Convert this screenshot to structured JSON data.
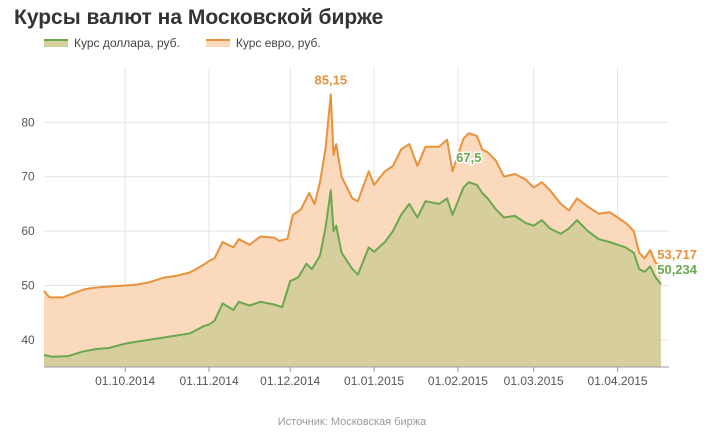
{
  "chart_data": {
    "type": "area",
    "title": "Курсы валют на Московской бирже",
    "source": "Источник: Московская биржа",
    "ylim": [
      35,
      90
    ],
    "yticks": [
      40,
      50,
      60,
      70,
      80
    ],
    "xlim": [
      "2014-09-01",
      "2015-04-20"
    ],
    "xticks": [
      {
        "date": "2014-10-01",
        "label": "01.10.2014"
      },
      {
        "date": "2014-11-01",
        "label": "01.11.2014"
      },
      {
        "date": "2014-12-01",
        "label": "01.12.2014"
      },
      {
        "date": "2015-01-01",
        "label": "01.01.2015"
      },
      {
        "date": "2015-02-01",
        "label": "01.02.2015"
      },
      {
        "date": "2015-03-01",
        "label": "01.03.2015"
      },
      {
        "date": "2015-04-01",
        "label": "01.04.2015"
      }
    ],
    "grid": true,
    "legend": "top-left",
    "series": [
      {
        "name": "Курс евро, руб.",
        "color": "#e8923c",
        "fill": "#fad9bd",
        "peak_label": "85,15",
        "last_label": "53,717",
        "points": [
          [
            "2014-09-01",
            49.0
          ],
          [
            "2014-09-03",
            47.8
          ],
          [
            "2014-09-08",
            47.8
          ],
          [
            "2014-09-12",
            48.6
          ],
          [
            "2014-09-16",
            49.3
          ],
          [
            "2014-09-20",
            49.6
          ],
          [
            "2014-09-25",
            49.8
          ],
          [
            "2014-10-01",
            50.0
          ],
          [
            "2014-10-06",
            50.2
          ],
          [
            "2014-10-10",
            50.6
          ],
          [
            "2014-10-15",
            51.4
          ],
          [
            "2014-10-20",
            51.8
          ],
          [
            "2014-10-25",
            52.4
          ],
          [
            "2014-10-30",
            53.8
          ],
          [
            "2014-11-01",
            54.5
          ],
          [
            "2014-11-03",
            55.0
          ],
          [
            "2014-11-06",
            58.0
          ],
          [
            "2014-11-10",
            57.0
          ],
          [
            "2014-11-12",
            58.5
          ],
          [
            "2014-11-16",
            57.5
          ],
          [
            "2014-11-20",
            59.0
          ],
          [
            "2014-11-25",
            58.8
          ],
          [
            "2014-11-27",
            58.2
          ],
          [
            "2014-11-30",
            58.6
          ],
          [
            "2014-12-02",
            63.0
          ],
          [
            "2014-12-05",
            64.0
          ],
          [
            "2014-12-08",
            67.0
          ],
          [
            "2014-12-10",
            65.0
          ],
          [
            "2014-12-12",
            69.0
          ],
          [
            "2014-12-14",
            75.0
          ],
          [
            "2014-12-16",
            85.15
          ],
          [
            "2014-12-17",
            74.0
          ],
          [
            "2014-12-18",
            76.0
          ],
          [
            "2014-12-20",
            70.0
          ],
          [
            "2014-12-24",
            66.0
          ],
          [
            "2014-12-26",
            65.5
          ],
          [
            "2014-12-30",
            71.0
          ],
          [
            "2015-01-01",
            68.5
          ],
          [
            "2015-01-05",
            71.0
          ],
          [
            "2015-01-08",
            72.0
          ],
          [
            "2015-01-11",
            75.0
          ],
          [
            "2015-01-14",
            76.0
          ],
          [
            "2015-01-17",
            72.0
          ],
          [
            "2015-01-20",
            75.5
          ],
          [
            "2015-01-25",
            75.5
          ],
          [
            "2015-01-28",
            76.8
          ],
          [
            "2015-01-30",
            71.0
          ],
          [
            "2015-02-03",
            77.0
          ],
          [
            "2015-02-05",
            78.0
          ],
          [
            "2015-02-08",
            77.5
          ],
          [
            "2015-02-10",
            75.0
          ],
          [
            "2015-02-12",
            74.5
          ],
          [
            "2015-02-15",
            73.0
          ],
          [
            "2015-02-18",
            70.0
          ],
          [
            "2015-02-22",
            70.5
          ],
          [
            "2015-02-26",
            69.5
          ],
          [
            "2015-03-01",
            68.0
          ],
          [
            "2015-03-04",
            69.0
          ],
          [
            "2015-03-07",
            67.5
          ],
          [
            "2015-03-11",
            65.0
          ],
          [
            "2015-03-14",
            63.8
          ],
          [
            "2015-03-17",
            66.0
          ],
          [
            "2015-03-21",
            64.5
          ],
          [
            "2015-03-25",
            63.2
          ],
          [
            "2015-03-29",
            63.5
          ],
          [
            "2015-04-01",
            62.5
          ],
          [
            "2015-04-04",
            61.5
          ],
          [
            "2015-04-07",
            60.0
          ],
          [
            "2015-04-09",
            56.0
          ],
          [
            "2015-04-11",
            55.0
          ],
          [
            "2015-04-13",
            56.5
          ],
          [
            "2015-04-15",
            54.2
          ],
          [
            "2015-04-17",
            53.717
          ]
        ]
      },
      {
        "name": "Курс доллара, руб.",
        "color": "#6aa84f",
        "fill": "#d7ce9e",
        "peak_label": "67,5",
        "last_label": "50,234",
        "points": [
          [
            "2014-09-01",
            37.2
          ],
          [
            "2014-09-04",
            36.9
          ],
          [
            "2014-09-10",
            37.0
          ],
          [
            "2014-09-15",
            37.8
          ],
          [
            "2014-09-20",
            38.3
          ],
          [
            "2014-09-25",
            38.5
          ],
          [
            "2014-10-01",
            39.3
          ],
          [
            "2014-10-06",
            39.7
          ],
          [
            "2014-10-10",
            40.0
          ],
          [
            "2014-10-15",
            40.4
          ],
          [
            "2014-10-20",
            40.8
          ],
          [
            "2014-10-25",
            41.2
          ],
          [
            "2014-10-30",
            42.5
          ],
          [
            "2014-11-01",
            42.8
          ],
          [
            "2014-11-03",
            43.5
          ],
          [
            "2014-11-06",
            46.7
          ],
          [
            "2014-11-10",
            45.5
          ],
          [
            "2014-11-12",
            47.0
          ],
          [
            "2014-11-16",
            46.3
          ],
          [
            "2014-11-20",
            47.0
          ],
          [
            "2014-11-25",
            46.5
          ],
          [
            "2014-11-28",
            46.0
          ],
          [
            "2014-12-01",
            50.8
          ],
          [
            "2014-12-04",
            51.5
          ],
          [
            "2014-12-07",
            54.0
          ],
          [
            "2014-12-09",
            53.0
          ],
          [
            "2014-12-12",
            55.5
          ],
          [
            "2014-12-14",
            60.5
          ],
          [
            "2014-12-16",
            67.5
          ],
          [
            "2014-12-17",
            60.0
          ],
          [
            "2014-12-18",
            61.0
          ],
          [
            "2014-12-20",
            56.0
          ],
          [
            "2014-12-24",
            53.0
          ],
          [
            "2014-12-26",
            52.0
          ],
          [
            "2014-12-30",
            57.0
          ],
          [
            "2015-01-01",
            56.2
          ],
          [
            "2015-01-05",
            58.0
          ],
          [
            "2015-01-08",
            60.0
          ],
          [
            "2015-01-11",
            63.0
          ],
          [
            "2015-01-14",
            65.0
          ],
          [
            "2015-01-17",
            62.5
          ],
          [
            "2015-01-20",
            65.5
          ],
          [
            "2015-01-25",
            65.0
          ],
          [
            "2015-01-28",
            66.0
          ],
          [
            "2015-01-30",
            63.0
          ],
          [
            "2015-02-03",
            68.0
          ],
          [
            "2015-02-05",
            69.0
          ],
          [
            "2015-02-08",
            68.5
          ],
          [
            "2015-02-10",
            67.0
          ],
          [
            "2015-02-12",
            66.0
          ],
          [
            "2015-02-15",
            64.0
          ],
          [
            "2015-02-18",
            62.5
          ],
          [
            "2015-02-22",
            62.8
          ],
          [
            "2015-02-26",
            61.5
          ],
          [
            "2015-03-01",
            61.0
          ],
          [
            "2015-03-04",
            62.0
          ],
          [
            "2015-03-07",
            60.5
          ],
          [
            "2015-03-11",
            59.5
          ],
          [
            "2015-03-14",
            60.5
          ],
          [
            "2015-03-17",
            62.0
          ],
          [
            "2015-03-21",
            60.0
          ],
          [
            "2015-03-25",
            58.5
          ],
          [
            "2015-03-29",
            58.0
          ],
          [
            "2015-04-01",
            57.5
          ],
          [
            "2015-04-04",
            57.0
          ],
          [
            "2015-04-07",
            56.0
          ],
          [
            "2015-04-09",
            53.0
          ],
          [
            "2015-04-11",
            52.5
          ],
          [
            "2015-04-13",
            53.5
          ],
          [
            "2015-04-15",
            51.5
          ],
          [
            "2015-04-17",
            50.234
          ]
        ]
      }
    ]
  }
}
